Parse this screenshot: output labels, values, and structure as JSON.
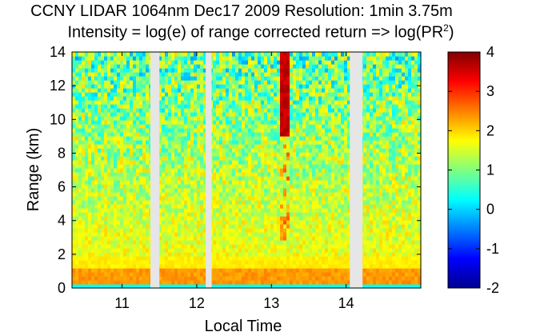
{
  "chart_data": {
    "type": "heatmap",
    "title": "CCNY LIDAR 1064nm Dec17 2009 Resolution: 1min 3.75m",
    "subtitle": "Intensity = log(e) of range corrected return => log(PR",
    "subtitle_sup": "2",
    "subtitle_end": ")",
    "xlabel": "Local Time",
    "ylabel": "Range (km)",
    "xlim": [
      10.33,
      15.0
    ],
    "ylim": [
      0,
      14
    ],
    "x_ticks": [
      "11",
      "12",
      "13",
      "14"
    ],
    "x_tick_values": [
      11,
      12,
      13,
      14
    ],
    "y_ticks": [
      "0",
      "2",
      "4",
      "6",
      "8",
      "10",
      "12",
      "14"
    ],
    "y_tick_values": [
      0,
      2,
      4,
      6,
      8,
      10,
      12,
      14
    ],
    "colorbar": {
      "range": [
        -2,
        4
      ],
      "ticks": [
        "-2",
        "-1",
        "0",
        "1",
        "2",
        "3",
        "4"
      ],
      "tick_values": [
        -2,
        -1,
        0,
        1,
        2,
        3,
        4
      ],
      "colormap": "jet"
    },
    "data_gaps_local_time": [
      [
        11.38,
        11.5
      ],
      [
        12.12,
        12.2
      ],
      [
        14.05,
        14.22
      ]
    ],
    "features": {
      "boundary_layer_top_km": 1.2,
      "plume_local_time": 13.18,
      "plume_range_km": [
        2.8,
        14.0
      ]
    },
    "colors": {
      "gap": "#e6e6e6",
      "background": "#ffffff"
    }
  }
}
